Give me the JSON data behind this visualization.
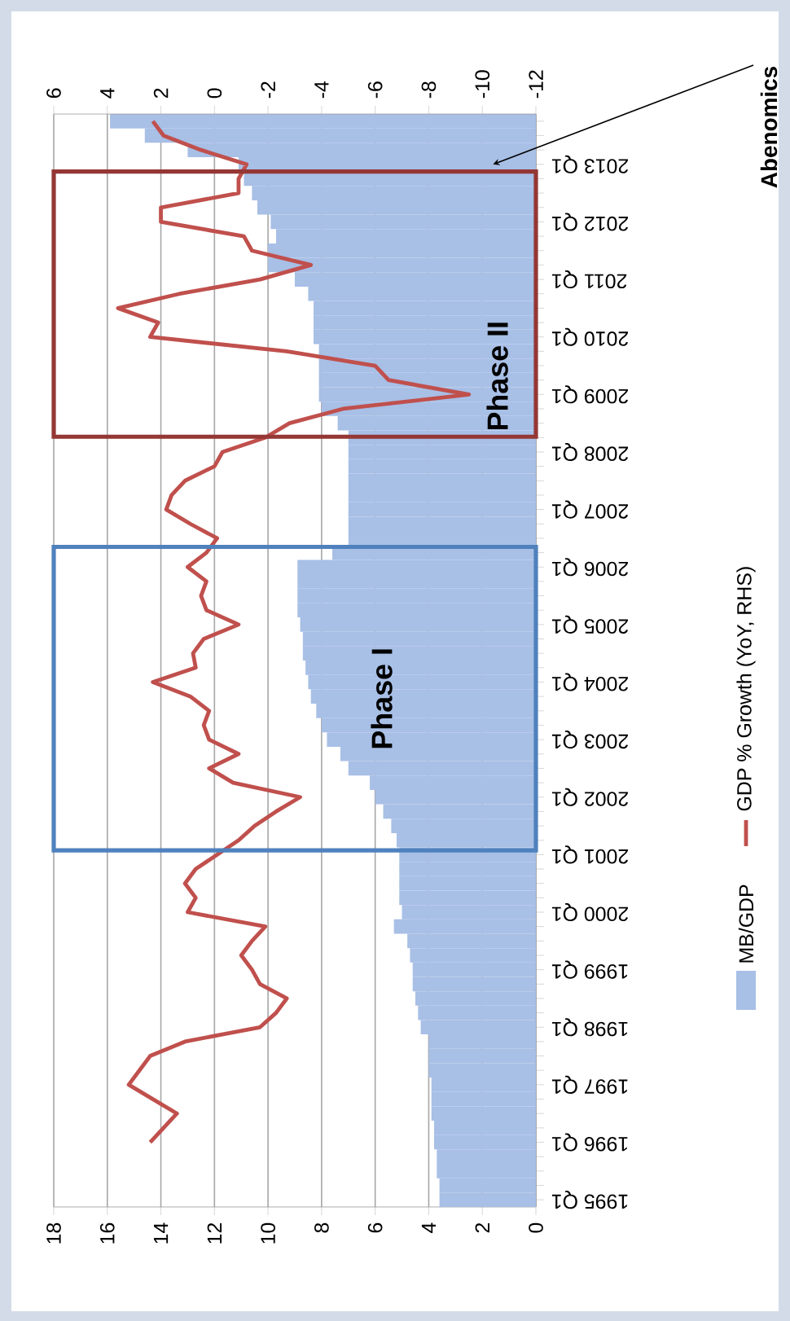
{
  "chart_data": {
    "type": "bar",
    "orientation": "horizontal",
    "categories": [
      null,
      null,
      null,
      "2013 Q1",
      null,
      null,
      null,
      "2012 Q1",
      null,
      null,
      null,
      "2011 Q1",
      null,
      null,
      null,
      "2010 Q1",
      null,
      null,
      null,
      "2009 Q1",
      null,
      null,
      null,
      "2008 Q1",
      null,
      null,
      null,
      "2007 Q1",
      null,
      null,
      null,
      "2006 Q1",
      null,
      null,
      null,
      "2005 Q1",
      null,
      null,
      null,
      "2004 Q1",
      null,
      null,
      null,
      "2003 Q1",
      null,
      null,
      null,
      "2002 Q1",
      null,
      null,
      null,
      "2001 Q1",
      null,
      null,
      null,
      "2000 Q1",
      null,
      null,
      null,
      "1999 Q1",
      null,
      null,
      null,
      "1998 Q1",
      null,
      null,
      null,
      "1997 Q1",
      null,
      null,
      null,
      "1996 Q1",
      null,
      null,
      null,
      "1995 Q1"
    ],
    "series": [
      {
        "name": "MB/GDP",
        "color": "#a8bfe6",
        "values": [
          15.9,
          14.6,
          13.0,
          11.1,
          10.9,
          10.6,
          10.4,
          9.9,
          9.7,
          10.0,
          10.0,
          9.0,
          8.5,
          8.3,
          8.3,
          8.3,
          8.1,
          8.1,
          8.1,
          8.1,
          8.0,
          7.4,
          7.0,
          7.0,
          7.0,
          7.0,
          7.0,
          7.0,
          7.0,
          7.0,
          7.6,
          8.9,
          8.9,
          8.9,
          8.9,
          8.8,
          8.7,
          8.7,
          8.6,
          8.5,
          8.4,
          8.2,
          8.0,
          7.8,
          7.3,
          7.0,
          6.2,
          6.0,
          5.7,
          5.4,
          5.2,
          5.1,
          5.1,
          5.1,
          5.1,
          5.0,
          5.3,
          4.8,
          4.7,
          4.6,
          4.6,
          4.5,
          4.4,
          4.3,
          4.0,
          4.0,
          4.0,
          3.9,
          3.9,
          3.9,
          3.8,
          3.8,
          3.7,
          3.7,
          3.6,
          3.6
        ]
      },
      {
        "name": "GDP % Growth (YoY, RHS)",
        "type": "line",
        "axis": "x2",
        "color": "#c0504d",
        "values": [
          2.3,
          1.9,
          0.5,
          -1.2,
          -0.9,
          -0.9,
          2.0,
          2.0,
          -1.1,
          -1.4,
          -3.6,
          -1.7,
          1.3,
          3.6,
          2.1,
          2.4,
          -2.7,
          -6.0,
          -6.5,
          -9.5,
          -4.8,
          -2.8,
          -1.9,
          -0.3,
          0.0,
          1.1,
          1.6,
          1.8,
          0.9,
          -0.1,
          0.3,
          1.0,
          0.3,
          0.5,
          0.3,
          -0.9,
          0.4,
          0.8,
          0.7,
          2.3,
          0.9,
          0.2,
          0.4,
          0.2,
          -0.9,
          0.2,
          -0.7,
          -3.2,
          -2.3,
          -1.5,
          -0.9,
          -0.1,
          0.7,
          1.1,
          0.7,
          1.0,
          -1.9,
          -1.4,
          -1.0,
          -1.4,
          -1.7,
          -2.7,
          -2.3,
          -1.7,
          1.1,
          2.4,
          2.8,
          3.2,
          2.3,
          1.4,
          1.9,
          2.4,
          null,
          null,
          null,
          null
        ]
      }
    ],
    "xlim": [
      18,
      0
    ],
    "xticks": [
      0,
      2,
      4,
      6,
      8,
      10,
      12,
      14,
      16,
      18
    ],
    "x2lim": [
      6,
      -12
    ],
    "x2ticks": [
      -12,
      -10,
      -8,
      -6,
      -4,
      -2,
      0,
      2,
      4,
      6
    ],
    "annotations": [
      {
        "text": "Abenomics",
        "x": 1.6,
        "y": "2013 Q1"
      },
      "Phase I",
      "Phase II"
    ],
    "grid": "x",
    "legend": "right"
  }
}
